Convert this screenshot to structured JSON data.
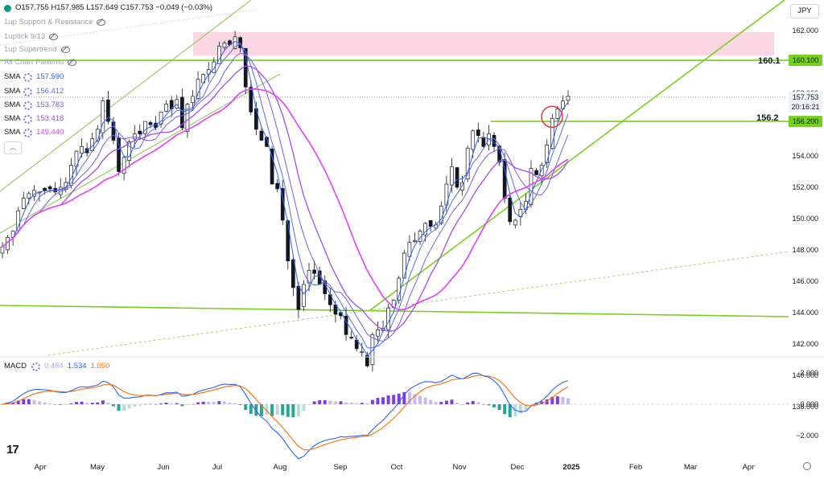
{
  "header": {
    "ohlc_text": "O157.755 H157.985 L157.649 C157.753 −0.049 (−0.03%)",
    "currency": "JPY"
  },
  "indicators": [
    {
      "label": "1up Support & Resistance",
      "muted": true
    },
    {
      "label": "1uptick 9/13",
      "muted": true
    },
    {
      "label": "1up Supertrend",
      "muted": true
    },
    {
      "label": "All Chart Patterns",
      "muted": true
    }
  ],
  "sma_list": [
    {
      "name": "SMA",
      "value": "157.590",
      "color": "#2962ff"
    },
    {
      "name": "SMA",
      "value": "156.412",
      "color": "#5b6cf0"
    },
    {
      "name": "SMA",
      "value": "153.783",
      "color": "#7b5cf0"
    },
    {
      "name": "SMA",
      "value": "153.418",
      "color": "#a24cf0"
    },
    {
      "name": "SMA",
      "value": "149.440",
      "color": "#e040fb"
    }
  ],
  "macd_legend": {
    "name": "MACD",
    "hist": "0.484",
    "macd": "1.534",
    "signal": "1.050",
    "hist_color": "#b6a6f7",
    "macd_color": "#2962ff",
    "signal_color": "#ff6d00"
  },
  "price_axis": {
    "ticks": [
      "162.000",
      "160.000",
      "158.000",
      "156.000",
      "154.000",
      "152.000",
      "150.000",
      "148.000",
      "146.000",
      "144.000",
      "142.000",
      "140.000",
      "138.000"
    ]
  },
  "price_labels": {
    "current_price": "157.753",
    "countdown": "20:16:21",
    "level_160": "160.100",
    "level_156": "156.200"
  },
  "annotations": {
    "level_160_text": "160.1",
    "level_156_text": "156.2"
  },
  "macd_axis": {
    "ticks": [
      "2.000",
      "0.000",
      "−2.000"
    ]
  },
  "time_axis": {
    "labels": [
      "Apr",
      "May",
      "Jun",
      "Jul",
      "Aug",
      "Sep",
      "Oct",
      "Nov",
      "Dec",
      "2025",
      "Feb",
      "Mar",
      "Apr"
    ]
  },
  "chart_data": {
    "type": "candlestick",
    "ylim": [
      137,
      163
    ],
    "horizontal_levels": [
      160.1,
      156.2
    ],
    "resistance_zone": [
      160.4,
      161.9
    ],
    "close_series": [
      148.2,
      148.8,
      149.2,
      150.5,
      151.3,
      151.6,
      151.8,
      151.7,
      151.8,
      151.9,
      151.7,
      152.0,
      152.3,
      153.4,
      154.3,
      154.6,
      154.2,
      155.1,
      155.7,
      157.5,
      156.2,
      155.0,
      153.0,
      153.9,
      154.9,
      155.4,
      155.4,
      156.2,
      156.0,
      155.8,
      156.8,
      157.3,
      157.0,
      157.6,
      155.8,
      157.3,
      157.8,
      158.9,
      159.2,
      159.5,
      160.0,
      161.0,
      161.2,
      161.1,
      161.6,
      160.9,
      158.4,
      156.8,
      155.7,
      155.0,
      154.6,
      152.2,
      151.9,
      149.9,
      147.3,
      145.6,
      144.2,
      145.8,
      146.7,
      146.5,
      145.8,
      145.2,
      144.5,
      143.9,
      143.8,
      142.6,
      142.4,
      141.7,
      141.5,
      140.6,
      142.6,
      142.9,
      143.0,
      144.3,
      144.8,
      146.2,
      147.8,
      148.5,
      148.6,
      149.2,
      149.7,
      149.5,
      149.6,
      150.8,
      152.2,
      153.3,
      152.0,
      152.3,
      154.5,
      155.6,
      155.3,
      154.6,
      155.4,
      154.6,
      153.6,
      151.3,
      149.8,
      149.9,
      150.6,
      151.1,
      153.2,
      152.8,
      153.4,
      154.7,
      156.4,
      157.0,
      157.5,
      157.8
    ]
  }
}
